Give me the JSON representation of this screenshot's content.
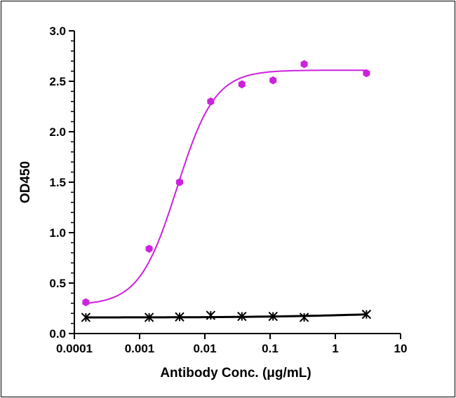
{
  "chart_data": {
    "type": "scatter",
    "title": "",
    "xlabel": "Antibody Conc. (μg/mL)",
    "ylabel": "OD450",
    "x_scale": "log",
    "xlim": [
      0.0001,
      10
    ],
    "ylim": [
      0.0,
      3.0
    ],
    "x_ticks": [
      "0.0001",
      "0.001",
      "0.01",
      "0.1",
      "1",
      "10"
    ],
    "y_ticks": [
      "0.0",
      "0.5",
      "1.0",
      "1.5",
      "2.0",
      "2.5",
      "3.0"
    ],
    "grid": false,
    "legend": "none",
    "series": [
      {
        "color": "#cc22dd",
        "marker": "hexagon",
        "fit": "sigmoidal",
        "points": [
          {
            "x": 0.00015,
            "y": 0.31
          },
          {
            "x": 0.0014,
            "y": 0.84
          },
          {
            "x": 0.0041,
            "y": 1.5
          },
          {
            "x": 0.0123,
            "y": 2.3
          },
          {
            "x": 0.037,
            "y": 2.47
          },
          {
            "x": 0.111,
            "y": 2.51
          },
          {
            "x": 0.333,
            "y": 2.67
          },
          {
            "x": 3.0,
            "y": 2.58
          }
        ]
      },
      {
        "color": "#000000",
        "marker": "asterisk",
        "fit": "line",
        "points": [
          {
            "x": 0.00015,
            "y": 0.16
          },
          {
            "x": 0.0014,
            "y": 0.16
          },
          {
            "x": 0.0041,
            "y": 0.165
          },
          {
            "x": 0.0123,
            "y": 0.18
          },
          {
            "x": 0.037,
            "y": 0.17
          },
          {
            "x": 0.111,
            "y": 0.17
          },
          {
            "x": 0.333,
            "y": 0.16
          },
          {
            "x": 3.0,
            "y": 0.19
          }
        ]
      }
    ]
  }
}
